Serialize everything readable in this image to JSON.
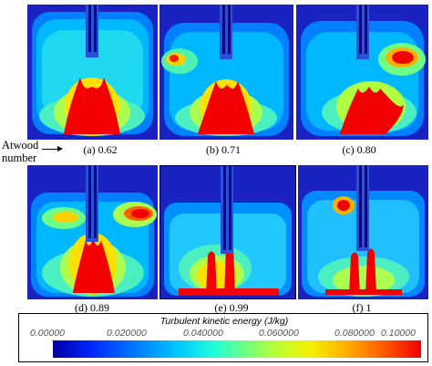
{
  "figure": {
    "side_label": "Atwood number",
    "side_label_lines": [
      "Atwood",
      "number"
    ],
    "panels": [
      {
        "label": "(a) 0.62"
      },
      {
        "label": "(b) 0.71"
      },
      {
        "label": "(c) 0.80"
      },
      {
        "label": "(d) 0.89"
      },
      {
        "label": "(e) 0.99"
      },
      {
        "label": "(f) 1"
      }
    ],
    "colorbar": {
      "title": "Turbulent kinetic energy (J/kg)",
      "ticks": [
        "0.00000",
        "0.020000",
        "0.040000",
        "0.060000",
        "0.080000",
        "0.10000"
      ],
      "min": 0.0,
      "max": 0.1,
      "colors": [
        "#0000a0",
        "#0076ff",
        "#00c8ff",
        "#6dff86",
        "#f5f000",
        "#ff5a00",
        "#f00000"
      ]
    }
  }
}
